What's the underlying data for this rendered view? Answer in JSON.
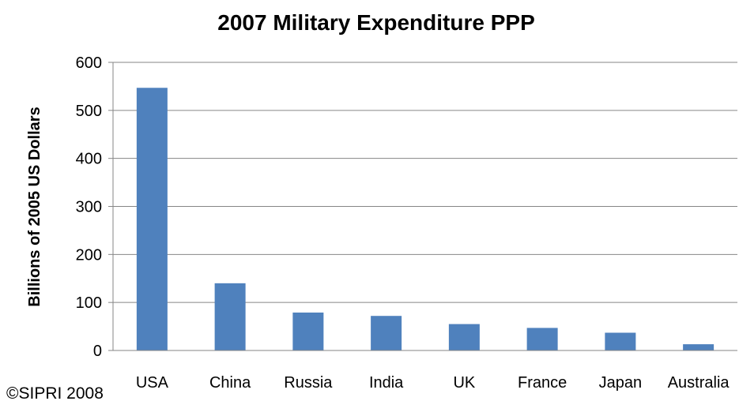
{
  "chart_data": {
    "type": "bar",
    "title": "2007 Military Expenditure PPP",
    "xlabel": "",
    "ylabel": "Billions of 2005 US Dollars",
    "categories": [
      "USA",
      "China",
      "Russia",
      "India",
      "UK",
      "France",
      "Japan",
      "Australia"
    ],
    "values": [
      547,
      140,
      79,
      72,
      55,
      47,
      37,
      13
    ],
    "ylim": [
      0,
      600
    ],
    "yticks": [
      0,
      100,
      200,
      300,
      400,
      500,
      600
    ],
    "grid": true,
    "bar_color": "#4F81BD",
    "credit": "©SIPRI 2008"
  }
}
